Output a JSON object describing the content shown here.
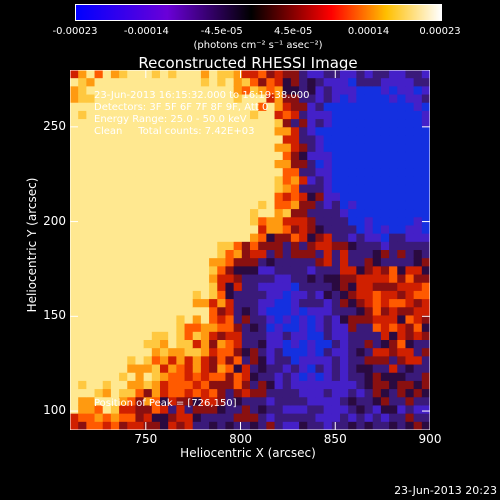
{
  "colorbar": {
    "ticks": [
      "-0.00023",
      "-0.00014",
      "-4.5e-05",
      "4.5e-05",
      "0.00014",
      "0.00023"
    ],
    "tick_values": [
      -0.00023,
      -0.00014,
      -4.5e-05,
      4.5e-05,
      0.00014,
      0.00023
    ],
    "unit_label": "(photons cm⁻² s⁻¹ asec⁻²)",
    "colors": [
      "#0000ff",
      "#6a00d8",
      "#000000",
      "#ff0000",
      "#ffff00",
      "#ffffff"
    ]
  },
  "title": "Reconstructed RHESSI Image",
  "info": {
    "time_range": "23-Jun-2013 16:15:32.000 to 16:19:38.000",
    "detectors": "Detectors: 3F 5F 6F 7F 8F 9F, Att 0",
    "energy": "Energy Range: 25.0 - 50.0 keV",
    "clean": "Clean     Total counts: 7.42E+03",
    "peak": "Position of Peak = [726,150]"
  },
  "axes": {
    "xlabel": "Heliocentric X (arcsec)",
    "ylabel": "Heliocentric Y (arcsec)",
    "xticks": [
      "750",
      "800",
      "850",
      "900"
    ],
    "xtick_values": [
      750,
      800,
      850,
      900
    ],
    "yticks": [
      "100",
      "150",
      "200",
      "250"
    ],
    "ytick_values": [
      100,
      150,
      200,
      250
    ],
    "xlim": [
      710,
      900
    ],
    "ylim": [
      90,
      280
    ]
  },
  "timestamp": "23-Jun-2013 20:23"
}
